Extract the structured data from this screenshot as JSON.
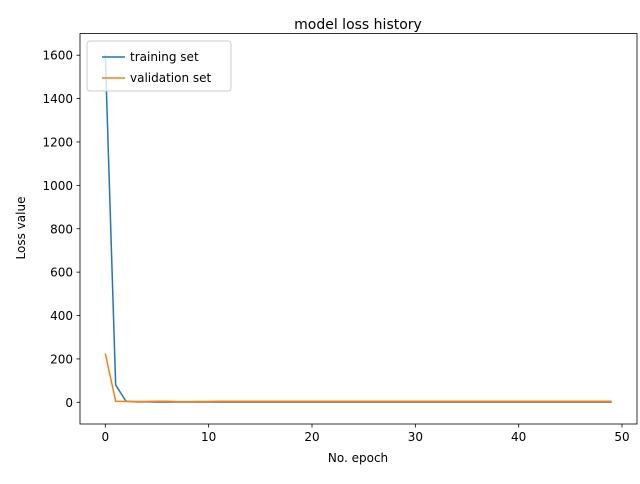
{
  "chart_data": {
    "type": "line",
    "title": "model loss history",
    "xlabel": "No. epoch",
    "ylabel": "Loss value",
    "xlim": [
      -2.45,
      51.45
    ],
    "ylim": [
      -100,
      1700
    ],
    "xticks": [
      0,
      10,
      20,
      30,
      40,
      50
    ],
    "yticks": [
      0,
      200,
      400,
      600,
      800,
      1000,
      1200,
      1400,
      1600
    ],
    "grid": false,
    "legend_position": "top-left",
    "series": [
      {
        "name": "training set",
        "color": "#1f77b4",
        "x": [
          0,
          1,
          2,
          3,
          4,
          5,
          6,
          7,
          8,
          9,
          10,
          11,
          12,
          13,
          14,
          15,
          16,
          17,
          18,
          19,
          20,
          21,
          22,
          23,
          24,
          25,
          26,
          27,
          28,
          29,
          30,
          31,
          32,
          33,
          34,
          35,
          36,
          37,
          38,
          39,
          40,
          41,
          42,
          43,
          44,
          45,
          46,
          47,
          48,
          49
        ],
        "y": [
          1600,
          80,
          5,
          2,
          2,
          1.5,
          1.5,
          1.5,
          1.5,
          1.5,
          1.5,
          1.5,
          1.5,
          1.5,
          1.5,
          1.5,
          1.5,
          1.5,
          1.5,
          1.5,
          1.5,
          1.5,
          1.5,
          1.5,
          1.5,
          1.5,
          1.5,
          1.5,
          1.5,
          1.5,
          1.5,
          1.5,
          1.5,
          1.5,
          1.5,
          1.5,
          1.5,
          1.5,
          1.5,
          1.5,
          1.5,
          1.5,
          1.5,
          1.5,
          1.5,
          1.5,
          1.5,
          1.5,
          1.5,
          1.5
        ]
      },
      {
        "name": "validation set",
        "color": "#ff7f0e",
        "x": [
          0,
          1,
          2,
          3,
          4,
          5,
          6,
          7,
          8,
          9,
          10,
          11,
          12,
          13,
          14,
          15,
          16,
          17,
          18,
          19,
          20,
          21,
          22,
          23,
          24,
          25,
          26,
          27,
          28,
          29,
          30,
          31,
          32,
          33,
          34,
          35,
          36,
          37,
          38,
          39,
          40,
          41,
          42,
          43,
          44,
          45,
          46,
          47,
          48,
          49
        ],
        "y": [
          225,
          5,
          4,
          4,
          4,
          5,
          5,
          3,
          3,
          4,
          4,
          5,
          5,
          5,
          5,
          5,
          5,
          5,
          5,
          5,
          5,
          5,
          5,
          5,
          5,
          5,
          5,
          5,
          5,
          5,
          5,
          5,
          5,
          5,
          5,
          5,
          5,
          5,
          5,
          5,
          5,
          5,
          5,
          5,
          5,
          5,
          5,
          5,
          5,
          5
        ]
      }
    ]
  }
}
